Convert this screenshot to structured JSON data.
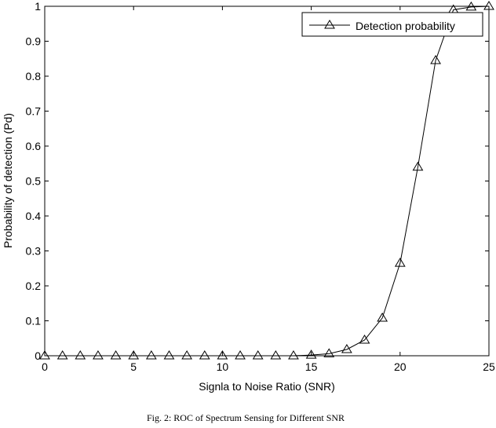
{
  "chart_data": {
    "type": "line",
    "title": "",
    "xlabel": "Signla to Noise Ratio (SNR)",
    "ylabel": "Probability of detection (Pd)",
    "xlim": [
      0,
      25
    ],
    "ylim": [
      0,
      1
    ],
    "xticks": [
      0,
      5,
      10,
      15,
      20,
      25
    ],
    "yticks": [
      0,
      0.1,
      0.2,
      0.3,
      0.4,
      0.5,
      0.6,
      0.7,
      0.8,
      0.9,
      1
    ],
    "grid": false,
    "legend_position": "top-right",
    "series": [
      {
        "name": "Detection probability",
        "marker": "triangle",
        "color": "#000000",
        "x": [
          0,
          1,
          2,
          3,
          4,
          5,
          6,
          7,
          8,
          9,
          10,
          11,
          12,
          13,
          14,
          15,
          16,
          17,
          18,
          19,
          20,
          21,
          22,
          23,
          24,
          25
        ],
        "y": [
          0,
          0,
          0,
          0,
          0,
          0,
          0,
          0,
          0,
          0,
          0,
          0,
          0,
          0,
          0,
          0.002,
          0.006,
          0.018,
          0.045,
          0.108,
          0.265,
          0.54,
          0.845,
          0.99,
          0.998,
          1.0
        ]
      }
    ]
  },
  "caption": "Fig. 2: ROC of Spectrum Sensing for Different SNR"
}
